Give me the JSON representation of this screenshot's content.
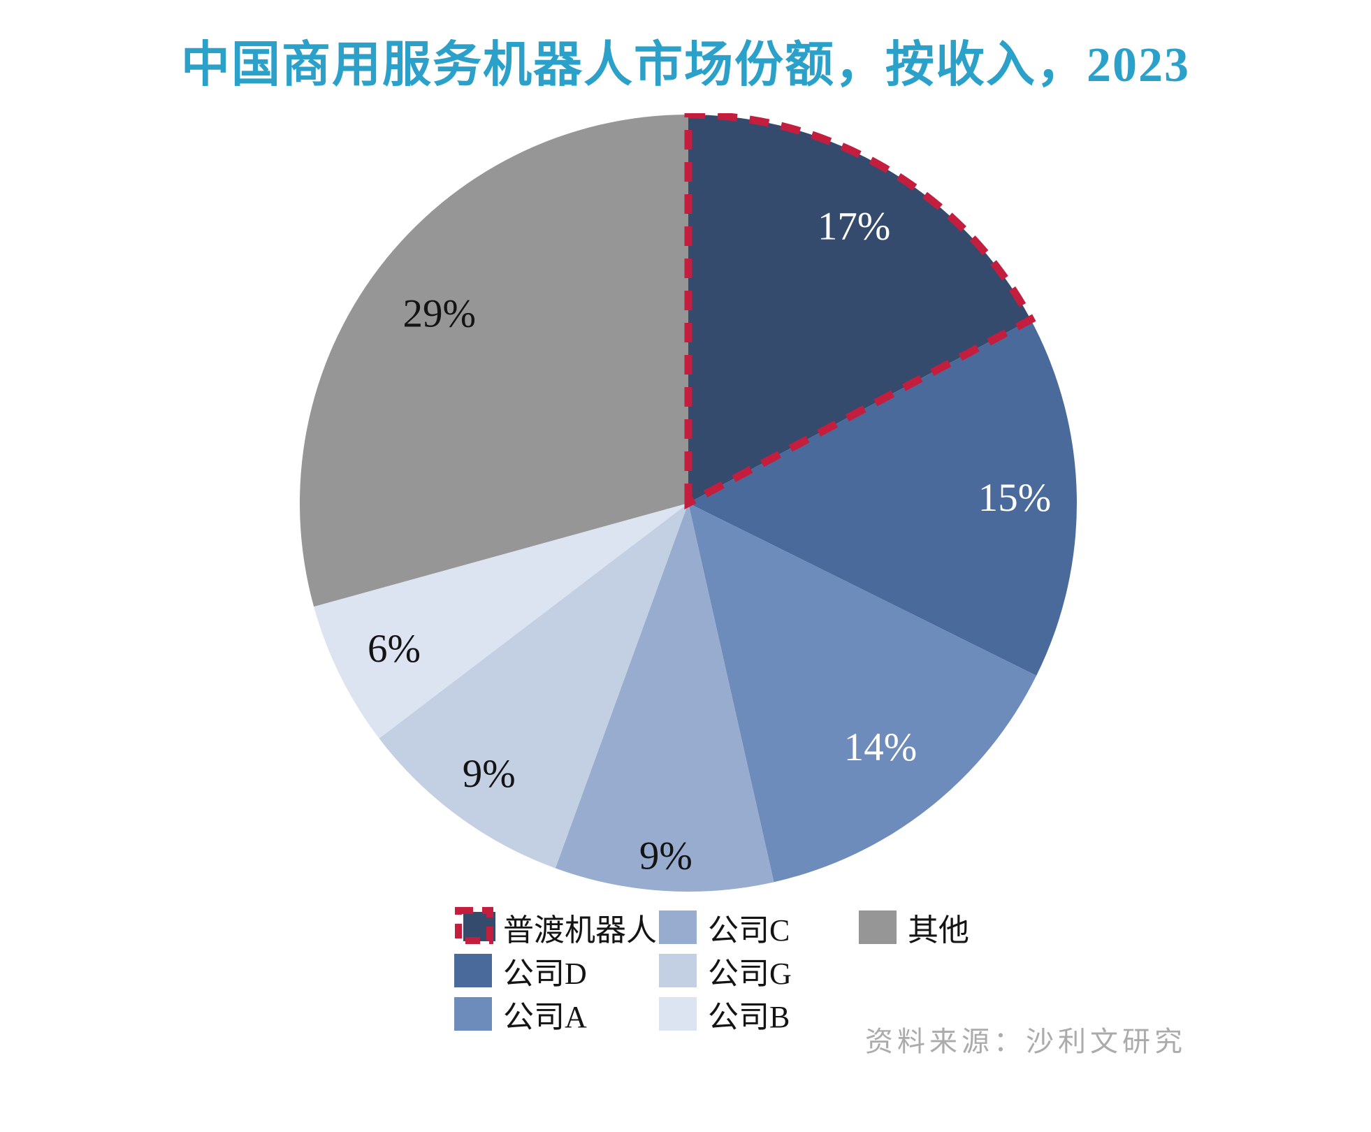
{
  "title": "中国商用服务机器人市场份额，按收入，2023",
  "source": "资料来源：沙利文研究",
  "colors": {
    "title": "#2BA1C9",
    "highlight": "#C41E3F",
    "source_text": "#ABABAB",
    "label_dark": "#141414",
    "label_light": "#FFFFFF"
  },
  "chart_data": {
    "type": "pie",
    "title": "中国商用服务机器人市场份额，按收入，2023",
    "start_angle_deg": 0,
    "direction": "clockwise",
    "legend_position": "bottom",
    "series": [
      {
        "name": "普渡机器人",
        "value": 17,
        "pct_label": "17%",
        "color": "#344B6D",
        "label_color": "#FFFFFF",
        "highlighted": true
      },
      {
        "name": "公司D",
        "value": 15,
        "pct_label": "15%",
        "color": "#4A6A9B",
        "label_color": "#FFFFFF",
        "highlighted": false
      },
      {
        "name": "公司A",
        "value": 14,
        "pct_label": "14%",
        "color": "#6E8CBB",
        "label_color": "#FFFFFF",
        "highlighted": false
      },
      {
        "name": "公司C",
        "value": 9,
        "pct_label": "9%",
        "color": "#97ACCE",
        "label_color": "#141414",
        "highlighted": false
      },
      {
        "name": "公司G",
        "value": 9,
        "pct_label": "9%",
        "color": "#C3CFE3",
        "label_color": "#141414",
        "highlighted": false
      },
      {
        "name": "公司B",
        "value": 6,
        "pct_label": "6%",
        "color": "#DCE3F1",
        "label_color": "#141414",
        "highlighted": false
      },
      {
        "name": "其他",
        "value": 29,
        "pct_label": "29%",
        "color": "#969696",
        "label_color": "#141414",
        "highlighted": false
      }
    ],
    "legend_columns": [
      [
        "普渡机器人",
        "公司D",
        "公司A"
      ],
      [
        "公司C",
        "公司G",
        "公司B"
      ],
      [
        "其他"
      ]
    ]
  }
}
